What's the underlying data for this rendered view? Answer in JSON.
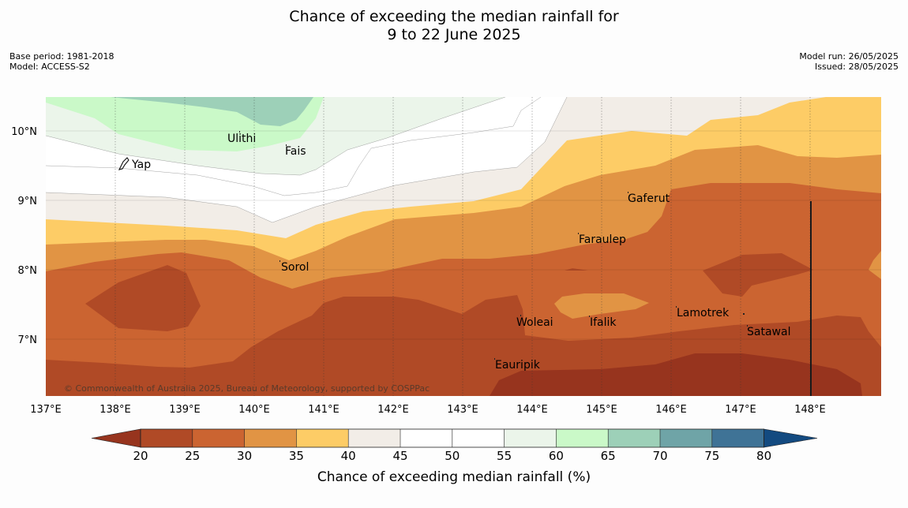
{
  "header": {
    "title_line1": "Chance of exceeding the median rainfall for",
    "title_line2": "9 to 22 June 2025",
    "base_period": "Base period: 1981-2018",
    "model": "Model: ACCESS-S2",
    "model_run": "Model run: 26/05/2025",
    "issued": "Issued: 28/05/2025"
  },
  "map": {
    "lat_labels": [
      "10°N",
      "9°N",
      "8°N",
      "7°N"
    ],
    "lon_labels": [
      "137°E",
      "138°E",
      "139°E",
      "140°E",
      "141°E",
      "142°E",
      "143°E",
      "144°E",
      "145°E",
      "146°E",
      "147°E",
      "148°E"
    ],
    "places": [
      "Ulithi",
      "Fais",
      "Yap",
      "Gaferut",
      "Faraulep",
      "Sorol",
      "Lamotrek",
      "Woleai",
      "Ifalik",
      "Satawal",
      "Eauripik"
    ],
    "copyright": "© Commonwealth of Australia 2025, Bureau of Meteorology, supported by COSPPac",
    "colors": {
      "lt20": "#97341e",
      "c20_25": "#b04a26",
      "c25_30": "#cb6431",
      "c30_35": "#e19444",
      "c35_40": "#fdcc66",
      "c40_45": "#f2ede7",
      "c45_55": "#ffffff",
      "c55_60": "#ebf5ea",
      "c60_65": "#caf9c8",
      "c65_70": "#9dd0b8",
      "c70_75": "#6fa4a7",
      "c75_80": "#3f7396",
      "gt80": "#134a80"
    }
  },
  "colorbar": {
    "ticks": [
      "20",
      "25",
      "30",
      "35",
      "40",
      "45",
      "50",
      "55",
      "60",
      "65",
      "70",
      "75",
      "80"
    ],
    "label": "Chance of exceeding median rainfall (%)",
    "colors": [
      "#97341e",
      "#b04a26",
      "#cb6431",
      "#e19444",
      "#fdcc66",
      "#f2ede7",
      "#ffffff",
      "#ffffff",
      "#ebf5ea",
      "#caf9c8",
      "#9dd0b8",
      "#6fa4a7",
      "#3f7396",
      "#134a80"
    ]
  }
}
